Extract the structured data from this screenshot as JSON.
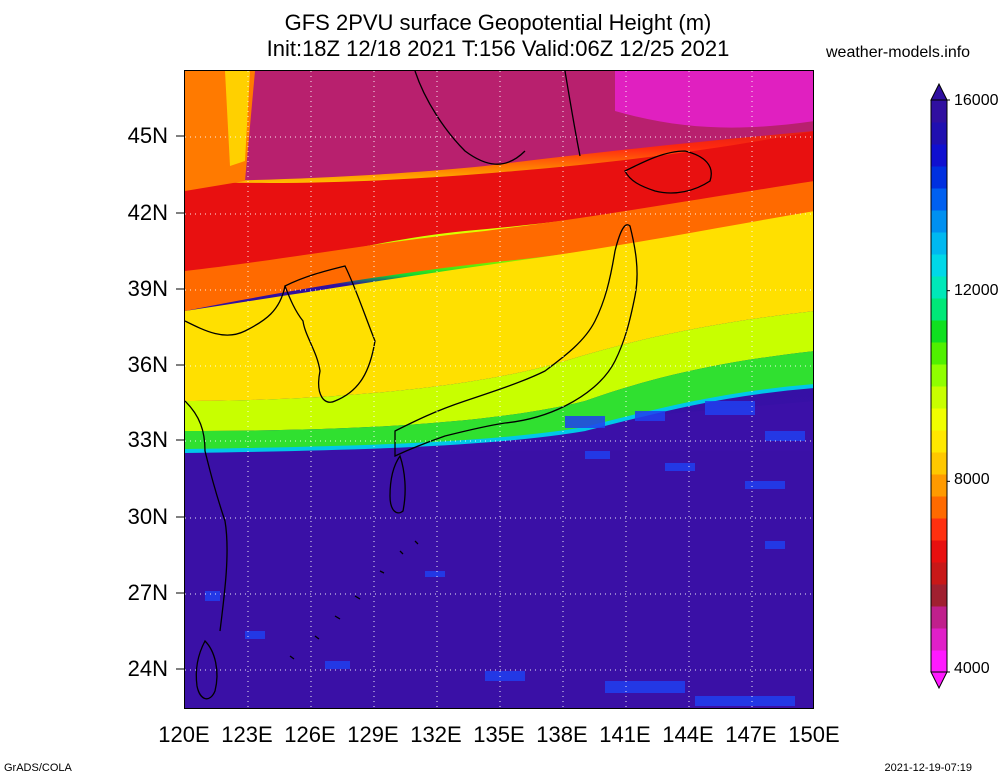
{
  "title": {
    "line1": "GFS 2PVU surface Geopotential Height (m)",
    "line2": "Init:18Z 12/18 2021 T:156 Valid:06Z 12/25 2021"
  },
  "site": "weather-models.info",
  "lat_labels": [
    "45N",
    "42N",
    "39N",
    "36N",
    "33N",
    "30N",
    "27N",
    "24N"
  ],
  "lon_labels": [
    "120E",
    "123E",
    "126E",
    "129E",
    "132E",
    "135E",
    "138E",
    "141E",
    "144E",
    "147E",
    "150E"
  ],
  "colorbar": {
    "labels": [
      "16000",
      "12000",
      "8000",
      "4000"
    ],
    "colors": [
      "#ff1aff",
      "#e020c8",
      "#c0208c",
      "#a02030",
      "#c81818",
      "#e81010",
      "#ff3010",
      "#ff6a00",
      "#ff9a00",
      "#ffc800",
      "#ffe800",
      "#f0ff00",
      "#c8ff00",
      "#90ff00",
      "#50f000",
      "#10e020",
      "#00e878",
      "#00e8b8",
      "#00d8e8",
      "#00b8f0",
      "#0090f0",
      "#0060f0",
      "#0030e0",
      "#1010d0",
      "#2010b0",
      "#3010a0"
    ]
  },
  "footer": {
    "left": "GrADS/COLA",
    "right": "2021-12-19-07:19"
  }
}
